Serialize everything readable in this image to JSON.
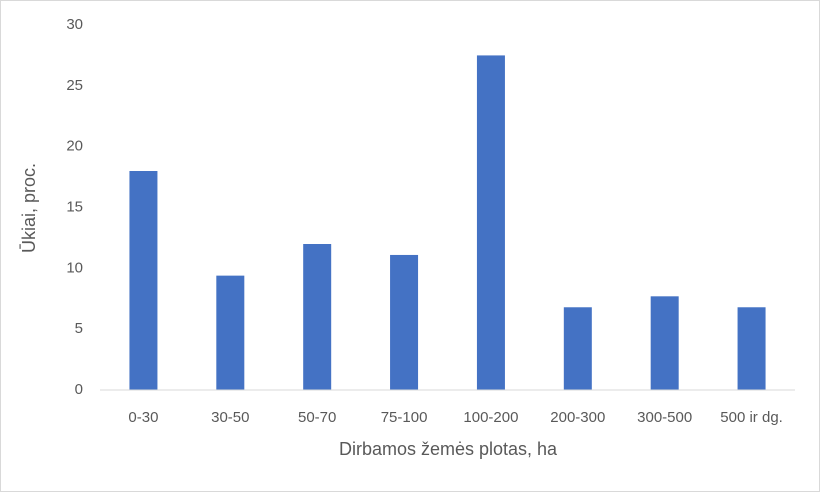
{
  "chart_data": {
    "type": "bar",
    "x_label": "Dirbamos žemės plotas, ha",
    "y_label": "Ūkiai, proc.",
    "categories": [
      "0-30",
      "30-50",
      "50-70",
      "75-100",
      "100-200",
      "200-300",
      "300-500",
      "500 ir dg."
    ],
    "values": [
      18.0,
      9.4,
      12.0,
      11.1,
      27.5,
      6.8,
      7.7,
      6.8
    ],
    "color": "#4472c4",
    "ylim": [
      0,
      30
    ],
    "yticks": [
      0,
      5,
      10,
      15,
      20,
      25,
      30
    ],
    "grid": false
  }
}
